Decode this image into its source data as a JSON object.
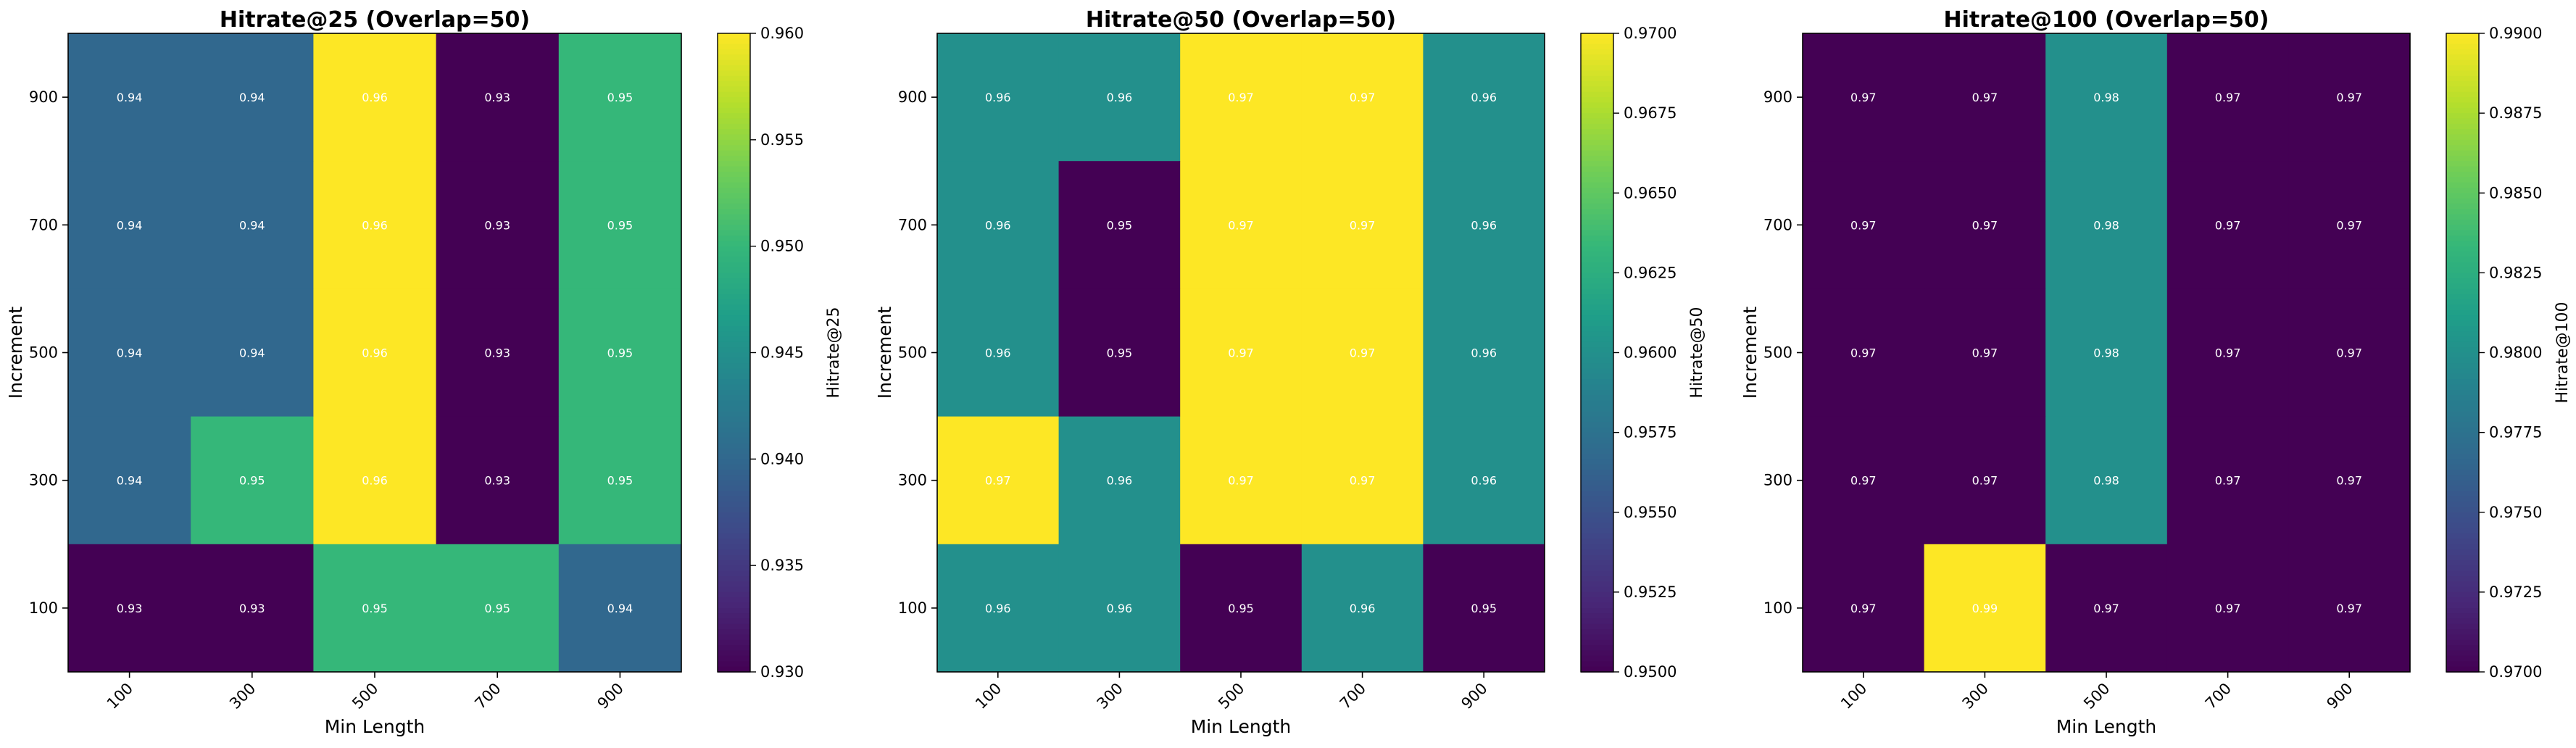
{
  "chart_data": [
    {
      "type": "heatmap",
      "title": "Hitrate@25 (Overlap=50)",
      "xlabel": "Min Length",
      "ylabel": "Increment",
      "x_categories": [
        "100",
        "300",
        "500",
        "700",
        "900"
      ],
      "y_categories": [
        "900",
        "700",
        "500",
        "300",
        "100"
      ],
      "values": [
        [
          0.94,
          0.94,
          0.96,
          0.93,
          0.95
        ],
        [
          0.94,
          0.94,
          0.96,
          0.93,
          0.95
        ],
        [
          0.94,
          0.94,
          0.96,
          0.93,
          0.95
        ],
        [
          0.94,
          0.95,
          0.96,
          0.93,
          0.95
        ],
        [
          0.93,
          0.93,
          0.95,
          0.95,
          0.94
        ]
      ],
      "colorbar": {
        "label": "Hitrate@25",
        "range": [
          0.93,
          0.96
        ],
        "ticks": [
          "0.930",
          "0.935",
          "0.940",
          "0.945",
          "0.950",
          "0.955",
          "0.960"
        ],
        "colormap": "viridis"
      }
    },
    {
      "type": "heatmap",
      "title": "Hitrate@50 (Overlap=50)",
      "xlabel": "Min Length",
      "ylabel": "Increment",
      "x_categories": [
        "100",
        "300",
        "500",
        "700",
        "900"
      ],
      "y_categories": [
        "900",
        "700",
        "500",
        "300",
        "100"
      ],
      "values": [
        [
          0.96,
          0.96,
          0.97,
          0.97,
          0.96
        ],
        [
          0.96,
          0.95,
          0.97,
          0.97,
          0.96
        ],
        [
          0.96,
          0.95,
          0.97,
          0.97,
          0.96
        ],
        [
          0.97,
          0.96,
          0.97,
          0.97,
          0.96
        ],
        [
          0.96,
          0.96,
          0.95,
          0.96,
          0.95
        ]
      ],
      "colorbar": {
        "label": "Hitrate@50",
        "range": [
          0.95,
          0.97
        ],
        "ticks": [
          "0.9500",
          "0.9525",
          "0.9550",
          "0.9575",
          "0.9600",
          "0.9625",
          "0.9650",
          "0.9675",
          "0.9700"
        ],
        "colormap": "viridis"
      }
    },
    {
      "type": "heatmap",
      "title": "Hitrate@100 (Overlap=50)",
      "xlabel": "Min Length",
      "ylabel": "Increment",
      "x_categories": [
        "100",
        "300",
        "500",
        "700",
        "900"
      ],
      "y_categories": [
        "900",
        "700",
        "500",
        "300",
        "100"
      ],
      "values": [
        [
          0.97,
          0.97,
          0.98,
          0.97,
          0.97
        ],
        [
          0.97,
          0.97,
          0.98,
          0.97,
          0.97
        ],
        [
          0.97,
          0.97,
          0.98,
          0.97,
          0.97
        ],
        [
          0.97,
          0.97,
          0.98,
          0.97,
          0.97
        ],
        [
          0.97,
          0.99,
          0.97,
          0.97,
          0.97
        ]
      ],
      "colorbar": {
        "label": "Hitrate@100",
        "range": [
          0.97,
          0.99
        ],
        "ticks": [
          "0.9700",
          "0.9725",
          "0.9750",
          "0.9775",
          "0.9800",
          "0.9825",
          "0.9850",
          "0.9875",
          "0.9900"
        ],
        "colormap": "viridis"
      }
    }
  ]
}
